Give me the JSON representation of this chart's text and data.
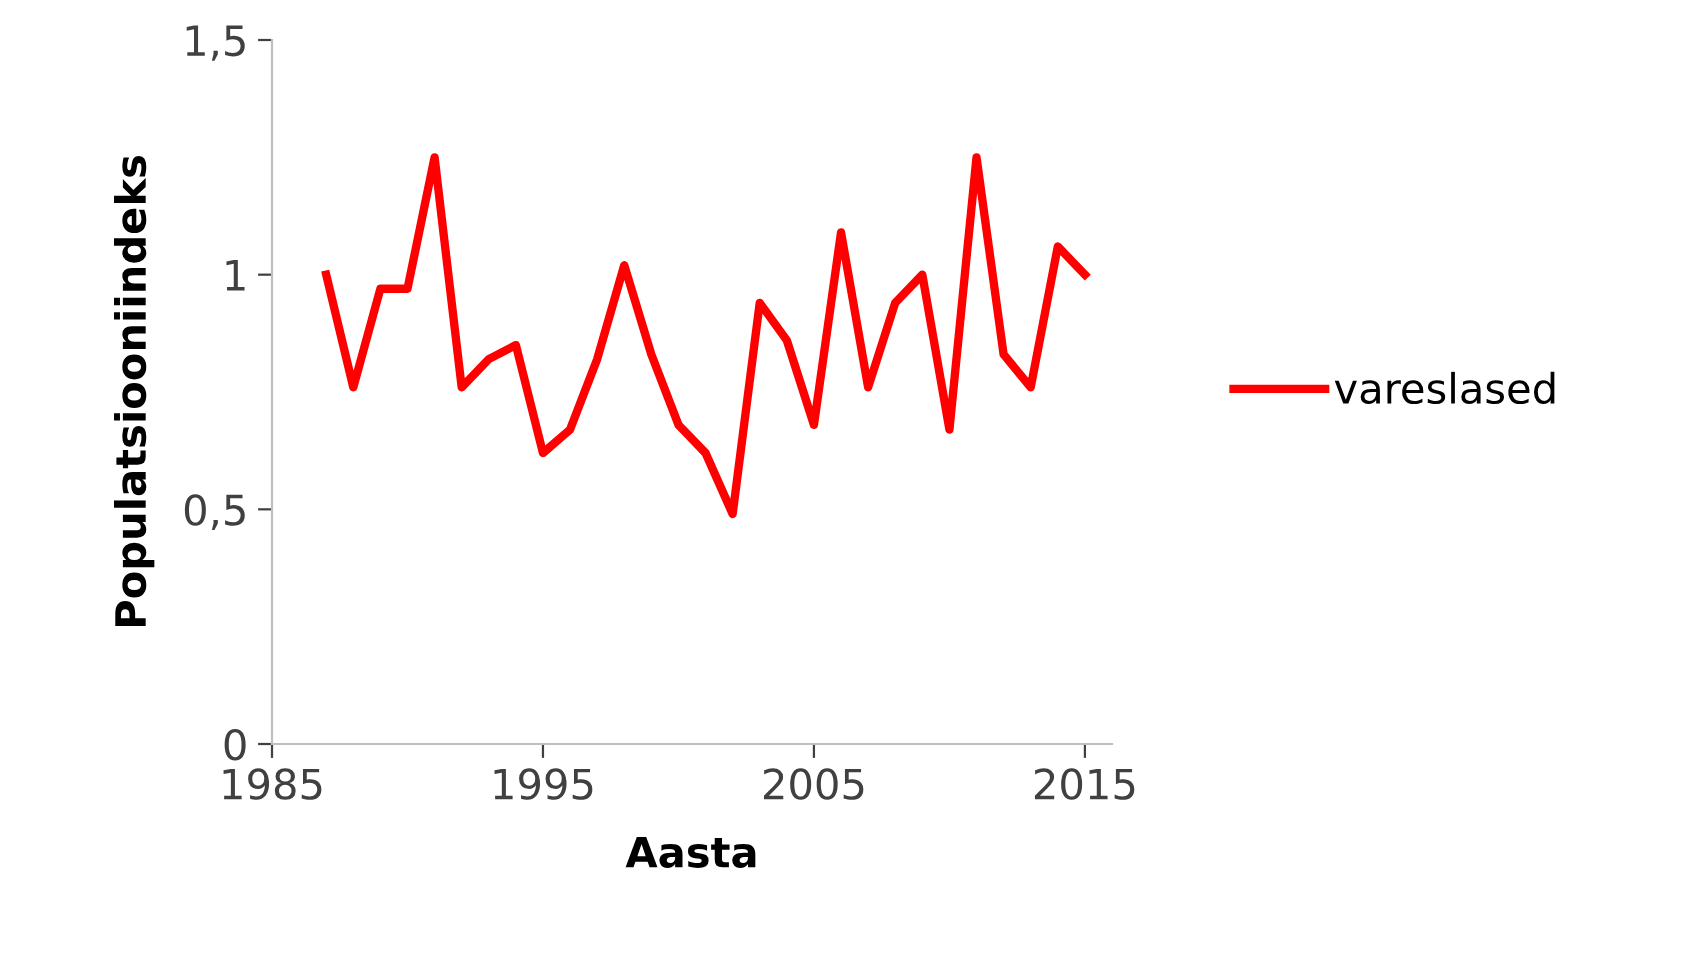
{
  "chart_data": {
    "type": "line",
    "xlabel": "Aasta",
    "ylabel": "Populatsiooniindeks",
    "x": [
      1987,
      1988,
      1989,
      1990,
      1991,
      1992,
      1993,
      1994,
      1995,
      1996,
      1997,
      1998,
      1999,
      2000,
      2001,
      2002,
      2003,
      2004,
      2005,
      2006,
      2007,
      2008,
      2009,
      2010,
      2011,
      2012,
      2013,
      2014,
      2015
    ],
    "series": [
      {
        "name": "vareslased",
        "color": "#ff0000",
        "values": [
          1.0,
          0.76,
          0.97,
          0.97,
          1.25,
          0.76,
          0.82,
          0.85,
          0.62,
          0.67,
          0.82,
          1.02,
          0.83,
          0.68,
          0.62,
          0.49,
          0.94,
          0.86,
          0.68,
          1.09,
          0.76,
          0.94,
          1.0,
          0.67,
          1.25,
          0.83,
          0.76,
          1.06,
          1.0
        ]
      }
    ],
    "xlim": [
      1985,
      2016
    ],
    "xticks": [
      1985,
      1995,
      2005,
      2015
    ],
    "ylim": [
      0,
      1.5
    ],
    "yticks": [
      0,
      {
        "value": 0.5,
        "label": "0,5"
      },
      1,
      {
        "value": 1.5,
        "label": "1,5"
      }
    ],
    "legend": "right",
    "grid": false,
    "marker": "none",
    "line_style": "solid"
  }
}
